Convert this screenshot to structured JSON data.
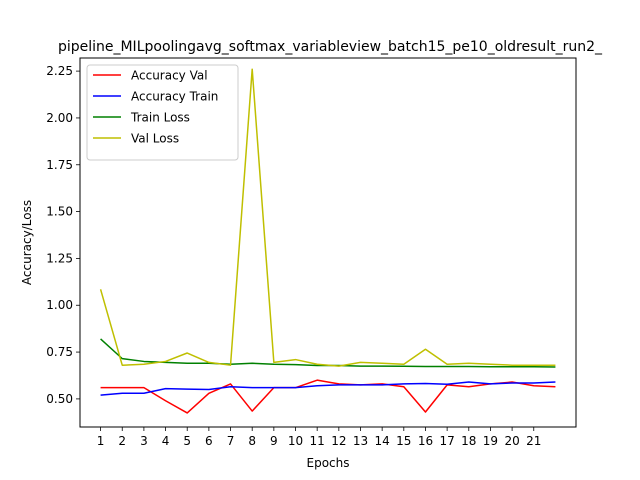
{
  "chart_data": {
    "type": "line",
    "title": "pipeline_MILpoolingavg_softmax_variableview_batch15_pe10_oldresult_run2_",
    "xlabel": "Epochs",
    "ylabel": "Accuracy/Loss",
    "x": [
      1,
      2,
      3,
      4,
      5,
      6,
      7,
      8,
      9,
      10,
      11,
      12,
      13,
      14,
      15,
      16,
      17,
      18,
      19,
      20,
      21,
      22
    ],
    "xticks": [
      "1",
      "2",
      "3",
      "4",
      "5",
      "6",
      "7",
      "8",
      "9",
      "10",
      "11",
      "12",
      "13",
      "14",
      "15",
      "16",
      "17",
      "18",
      "19",
      "20",
      "21"
    ],
    "xlim": [
      0.05,
      22.95
    ],
    "ylim": [
      0.35,
      2.32
    ],
    "yticks": [
      "0.50",
      "0.75",
      "1.00",
      "1.25",
      "1.50",
      "1.75",
      "2.00",
      "2.25"
    ],
    "legend_position": "top-left",
    "grid": false,
    "series": [
      {
        "name": "Accuracy Val",
        "color": "#ff0000",
        "values": [
          0.56,
          0.56,
          0.56,
          0.49,
          0.425,
          0.53,
          0.58,
          0.435,
          0.56,
          0.56,
          0.6,
          0.58,
          0.575,
          0.58,
          0.565,
          0.43,
          0.575,
          0.565,
          0.58,
          0.59,
          0.57,
          0.565
        ]
      },
      {
        "name": "Accuracy Train",
        "color": "#0000ff",
        "values": [
          0.52,
          0.53,
          0.53,
          0.555,
          0.552,
          0.55,
          0.565,
          0.56,
          0.56,
          0.56,
          0.57,
          0.575,
          0.575,
          0.575,
          0.58,
          0.582,
          0.578,
          0.59,
          0.58,
          0.585,
          0.585,
          0.59
        ]
      },
      {
        "name": "Train Loss",
        "color": "#008000",
        "values": [
          0.82,
          0.715,
          0.7,
          0.695,
          0.69,
          0.69,
          0.685,
          0.69,
          0.685,
          0.683,
          0.678,
          0.678,
          0.675,
          0.675,
          0.674,
          0.673,
          0.673,
          0.673,
          0.672,
          0.672,
          0.672,
          0.67
        ]
      },
      {
        "name": "Val Loss",
        "color": "#bfbf00",
        "values": [
          1.085,
          0.68,
          0.685,
          0.7,
          0.745,
          0.695,
          0.68,
          2.26,
          0.695,
          0.71,
          0.685,
          0.675,
          0.695,
          0.69,
          0.685,
          0.765,
          0.685,
          0.69,
          0.685,
          0.68,
          0.68,
          0.68
        ]
      }
    ]
  }
}
